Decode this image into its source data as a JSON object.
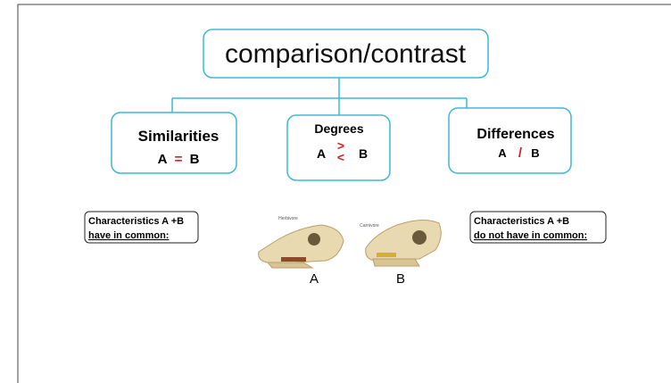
{
  "title": "comparison/contrast",
  "boxes": [
    {
      "heading": "Similarities",
      "a": "A",
      "symbol": "=",
      "b": "B"
    },
    {
      "heading": "Degrees",
      "a": "A",
      "symbol_top": ">",
      "symbol_bottom": "<",
      "b": "B"
    },
    {
      "heading": "Differences",
      "a": "A",
      "symbol": "/",
      "b": "B"
    }
  ],
  "notes": [
    {
      "line1": "Characteristics A +B",
      "line2": "have in common:"
    },
    {
      "line1": "Characteristics A +B",
      "line2": "do not have in common:"
    }
  ],
  "images": [
    {
      "caption": "Herbivore",
      "label": "A"
    },
    {
      "caption": "Carnivore",
      "label": "B"
    }
  ]
}
